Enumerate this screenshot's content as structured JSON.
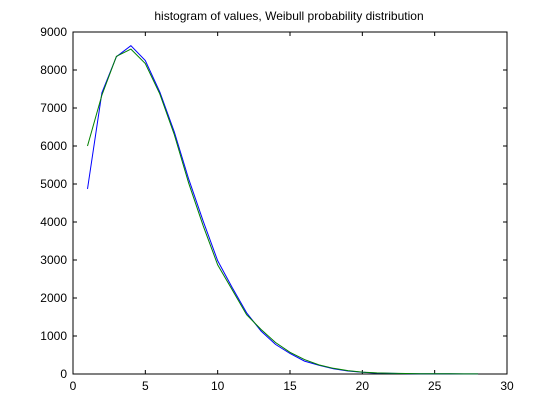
{
  "chart_data": {
    "type": "line",
    "title": "histogram of values, Weibull probability distribution",
    "xlabel": "",
    "ylabel": "",
    "xlim": [
      0,
      30
    ],
    "ylim": [
      0,
      9000
    ],
    "xticks": [
      0,
      5,
      10,
      15,
      20,
      25,
      30
    ],
    "yticks": [
      0,
      1000,
      2000,
      3000,
      4000,
      5000,
      6000,
      7000,
      8000,
      9000
    ],
    "grid": false,
    "legend": "none",
    "x": [
      1,
      2,
      3,
      4,
      5,
      6,
      7,
      8,
      9,
      10,
      11,
      12,
      13,
      14,
      15,
      16,
      17,
      18,
      19,
      20,
      21,
      22,
      23,
      24,
      25,
      26,
      27,
      28
    ],
    "series": [
      {
        "color": "#0000ff",
        "values": [
          4870,
          7400,
          8350,
          8640,
          8250,
          7420,
          6370,
          5130,
          4020,
          2980,
          2280,
          1610,
          1130,
          780,
          540,
          340,
          230,
          140,
          80,
          45,
          25,
          15,
          10,
          8,
          5,
          4,
          3,
          2
        ]
      },
      {
        "color": "#008000",
        "values": [
          6000,
          7340,
          8360,
          8550,
          8170,
          7370,
          6300,
          5020,
          3900,
          2870,
          2220,
          1560,
          1170,
          830,
          570,
          380,
          240,
          150,
          90,
          50,
          30,
          18,
          12,
          8,
          6,
          4,
          3,
          2
        ]
      }
    ]
  }
}
